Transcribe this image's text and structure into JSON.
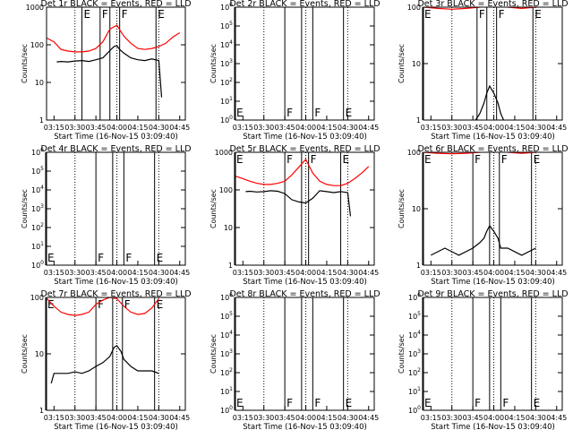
{
  "page": {
    "title_suffix": "BLACK = Events, RED = LLD",
    "xlabel": "Start Time (16-Nov-15 03:09:40)",
    "ylabel": "Counts/sec",
    "xticks": [
      "03:15",
      "03:30",
      "03:45",
      "04:00",
      "04:15",
      "04:30",
      "04:45"
    ],
    "colors": {
      "events": "#000000",
      "lld": "#ff0000",
      "axes": "#000000"
    }
  },
  "chart_data": [
    {
      "type": "line",
      "det": "Det 1r",
      "ylim_decades": [
        0,
        3
      ],
      "ytick_labels": [
        "1",
        "10",
        "100",
        "1000"
      ],
      "markers": [
        {
          "t": "03:35",
          "label": "E"
        },
        {
          "t": "03:48",
          "label": "F"
        },
        {
          "t": "03:55",
          "label": ""
        },
        {
          "t": "04:02",
          "label": "F"
        },
        {
          "t": "04:28",
          "label": "E"
        }
      ],
      "series": [
        {
          "name": "LLD",
          "color": "#ff0000",
          "x": [
            "03:10",
            "03:15",
            "03:20",
            "03:25",
            "03:30",
            "03:35",
            "03:40",
            "03:45",
            "03:50",
            "03:55",
            "04:00",
            "04:05",
            "04:10",
            "04:15",
            "04:20",
            "04:25",
            "04:30",
            "04:35",
            "04:40",
            "04:45"
          ],
          "y": [
            150,
            120,
            75,
            68,
            65,
            65,
            68,
            80,
            120,
            260,
            330,
            170,
            110,
            80,
            75,
            80,
            90,
            110,
            160,
            210
          ]
        },
        {
          "name": "Events",
          "color": "#000000",
          "x": [
            "03:17",
            "03:20",
            "03:25",
            "03:30",
            "03:35",
            "03:40",
            "03:45",
            "03:50",
            "03:55",
            "03:58",
            "04:00",
            "04:02",
            "04:05",
            "04:10",
            "04:15",
            "04:20",
            "04:25",
            "04:30",
            "04:32"
          ],
          "y": [
            35,
            36,
            35,
            37,
            38,
            36,
            40,
            45,
            70,
            90,
            95,
            75,
            60,
            45,
            40,
            38,
            42,
            38,
            4
          ]
        }
      ]
    },
    {
      "type": "line",
      "det": "Det 2r",
      "ylim_decades": [
        0,
        6
      ],
      "ytick_labels": [
        "10^0",
        "10^1",
        "10^2",
        "10^3",
        "10^4",
        "10^5",
        "10^6"
      ],
      "markers": [
        {
          "t": "03:09",
          "label": "E"
        },
        {
          "t": "03:45",
          "label": "F"
        },
        {
          "t": "03:57",
          "label": ""
        },
        {
          "t": "04:05",
          "label": "F"
        },
        {
          "t": "04:27",
          "label": "E"
        }
      ],
      "series": []
    },
    {
      "type": "line",
      "det": "Det 3r",
      "ylim_decades": [
        0,
        2
      ],
      "ytick_labels": [
        "1",
        "10",
        "100"
      ],
      "markers": [
        {
          "t": "03:09",
          "label": "E"
        },
        {
          "t": "03:48",
          "label": "F"
        },
        {
          "t": "03:55",
          "label": ""
        },
        {
          "t": "04:02",
          "label": "F"
        },
        {
          "t": "04:28",
          "label": "E"
        }
      ],
      "series": [
        {
          "name": "LLD",
          "color": "#ff0000",
          "x": [
            "03:10",
            "03:20",
            "03:30",
            "03:40",
            "03:50",
            "04:00",
            "04:10",
            "04:20",
            "04:30"
          ],
          "y": [
            100,
            95,
            92,
            95,
            100,
            110,
            100,
            95,
            100
          ]
        },
        {
          "name": "Events",
          "color": "#000000",
          "x": [
            "03:47",
            "03:50",
            "03:53",
            "03:55",
            "03:57",
            "04:00",
            "04:03",
            "04:05",
            "04:07"
          ],
          "y": [
            1,
            1.3,
            2,
            3,
            4,
            3,
            2,
            1.3,
            1
          ]
        }
      ]
    },
    {
      "type": "line",
      "det": "Det 4r",
      "ylim_decades": [
        0,
        6
      ],
      "ytick_labels": [
        "10^0",
        "10^1",
        "10^2",
        "10^3",
        "10^4",
        "10^5",
        "10^6"
      ],
      "markers": [
        {
          "t": "03:09",
          "label": "E"
        },
        {
          "t": "03:45",
          "label": "F"
        },
        {
          "t": "03:57",
          "label": ""
        },
        {
          "t": "04:05",
          "label": "F"
        },
        {
          "t": "04:27",
          "label": "E"
        }
      ],
      "series": []
    },
    {
      "type": "line",
      "det": "Det 5r",
      "ylim_decades": [
        0,
        3
      ],
      "ytick_labels": [
        "1",
        "10",
        "100",
        "1000"
      ],
      "markers": [
        {
          "t": "03:09",
          "label": "E"
        },
        {
          "t": "03:45",
          "label": "F"
        },
        {
          "t": "03:57",
          "label": ""
        },
        {
          "t": "04:02",
          "label": "F"
        },
        {
          "t": "04:25",
          "label": "E"
        }
      ],
      "series": [
        {
          "name": "LLD",
          "color": "#ff0000",
          "x": [
            "03:10",
            "03:15",
            "03:20",
            "03:25",
            "03:30",
            "03:35",
            "03:40",
            "03:45",
            "03:50",
            "03:55",
            "04:00",
            "04:05",
            "04:10",
            "04:15",
            "04:20",
            "04:25",
            "04:30",
            "04:35",
            "04:40",
            "04:45"
          ],
          "y": [
            230,
            200,
            170,
            150,
            140,
            140,
            150,
            170,
            250,
            400,
            650,
            280,
            170,
            140,
            130,
            130,
            150,
            200,
            280,
            420
          ]
        },
        {
          "name": "Events",
          "color": "#000000",
          "x": [
            "03:17",
            "03:20",
            "03:25",
            "03:30",
            "03:35",
            "03:40",
            "03:45",
            "03:50",
            "03:55",
            "04:00",
            "04:05",
            "04:10",
            "04:15",
            "04:20",
            "04:25",
            "04:30",
            "04:32"
          ],
          "y": [
            90,
            92,
            88,
            90,
            95,
            92,
            80,
            55,
            48,
            45,
            60,
            95,
            90,
            85,
            90,
            85,
            20
          ]
        }
      ]
    },
    {
      "type": "line",
      "det": "Det 6r",
      "ylim_decades": [
        0,
        2
      ],
      "ytick_labels": [
        "1",
        "10",
        "100"
      ],
      "markers": [
        {
          "t": "03:09",
          "label": "E"
        },
        {
          "t": "03:45",
          "label": "F"
        },
        {
          "t": "03:57",
          "label": ""
        },
        {
          "t": "04:04",
          "label": "F"
        },
        {
          "t": "04:27",
          "label": "E"
        }
      ],
      "series": [
        {
          "name": "LLD",
          "color": "#ff0000",
          "x": [
            "03:10",
            "03:20",
            "03:30",
            "03:40",
            "03:50",
            "04:00",
            "04:10",
            "04:20",
            "04:30"
          ],
          "y": [
            100,
            96,
            94,
            96,
            100,
            105,
            100,
            96,
            100
          ]
        },
        {
          "name": "Events",
          "color": "#000000",
          "x": [
            "03:15",
            "03:25",
            "03:35",
            "03:45",
            "03:50",
            "03:53",
            "03:55",
            "03:57",
            "04:00",
            "04:03",
            "04:05",
            "04:10",
            "04:20",
            "04:30"
          ],
          "y": [
            1.5,
            2,
            1.5,
            2,
            2.5,
            3,
            4,
            5,
            4,
            3,
            2,
            2,
            1.5,
            2
          ]
        }
      ]
    },
    {
      "type": "line",
      "det": "Det 7r",
      "ylim_decades": [
        0,
        2
      ],
      "ytick_labels": [
        "1",
        "10",
        "100"
      ],
      "markers": [
        {
          "t": "03:09",
          "label": "E"
        },
        {
          "t": "03:45",
          "label": "F"
        },
        {
          "t": "03:57",
          "label": ""
        },
        {
          "t": "04:04",
          "label": "F"
        },
        {
          "t": "04:27",
          "label": "E"
        }
      ],
      "series": [
        {
          "name": "LLD",
          "color": "#ff0000",
          "x": [
            "03:10",
            "03:15",
            "03:20",
            "03:25",
            "03:30",
            "03:35",
            "03:40",
            "03:45",
            "03:50",
            "03:55",
            "04:00",
            "04:05",
            "04:10",
            "04:15",
            "04:20",
            "04:25",
            "04:30"
          ],
          "y": [
            95,
            70,
            55,
            50,
            48,
            50,
            55,
            75,
            90,
            100,
            95,
            70,
            55,
            50,
            52,
            65,
            95
          ]
        },
        {
          "name": "Events",
          "color": "#000000",
          "x": [
            "03:13",
            "03:15",
            "03:20",
            "03:25",
            "03:30",
            "03:35",
            "03:40",
            "03:45",
            "03:50",
            "03:55",
            "03:58",
            "04:00",
            "04:03",
            "04:05",
            "04:10",
            "04:15",
            "04:20",
            "04:25",
            "04:30"
          ],
          "y": [
            3,
            4.5,
            4.5,
            4.5,
            4.8,
            4.5,
            5,
            6,
            7,
            9,
            13,
            14,
            11,
            8,
            6,
            5,
            5,
            5,
            4.5
          ]
        }
      ]
    },
    {
      "type": "line",
      "det": "Det 8r",
      "ylim_decades": [
        0,
        6
      ],
      "ytick_labels": [
        "10^0",
        "10^1",
        "10^2",
        "10^3",
        "10^4",
        "10^5",
        "10^6"
      ],
      "markers": [
        {
          "t": "03:09",
          "label": "E"
        },
        {
          "t": "03:45",
          "label": "F"
        },
        {
          "t": "03:57",
          "label": ""
        },
        {
          "t": "04:05",
          "label": "F"
        },
        {
          "t": "04:27",
          "label": "E"
        }
      ],
      "series": []
    },
    {
      "type": "line",
      "det": "Det 9r",
      "ylim_decades": [
        0,
        6
      ],
      "ytick_labels": [
        "10^0",
        "10^1",
        "10^2",
        "10^3",
        "10^4",
        "10^5",
        "10^6"
      ],
      "markers": [
        {
          "t": "03:09",
          "label": "E"
        },
        {
          "t": "03:45",
          "label": "F"
        },
        {
          "t": "03:57",
          "label": ""
        },
        {
          "t": "04:05",
          "label": "F"
        },
        {
          "t": "04:27",
          "label": "E"
        }
      ],
      "series": []
    }
  ]
}
